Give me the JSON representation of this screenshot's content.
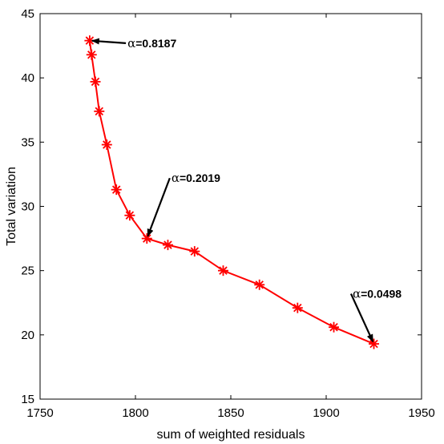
{
  "chart_data": {
    "type": "line",
    "title": "",
    "xlabel": "sum of weighted residuals",
    "ylabel": "Total variation",
    "xlim": [
      1750,
      1950
    ],
    "ylim": [
      15,
      45
    ],
    "xticks": [
      1750,
      1800,
      1850,
      1900,
      1950
    ],
    "yticks": [
      15,
      20,
      25,
      30,
      35,
      40,
      45
    ],
    "grid": false,
    "line_color": "#ff0000",
    "marker": "asterisk",
    "series": [
      {
        "x": [
          1776,
          1777,
          1779,
          1781,
          1785,
          1790,
          1797,
          1806,
          1817,
          1831,
          1846,
          1865,
          1885,
          1904,
          1925
        ],
        "y": [
          42.9,
          41.8,
          39.7,
          37.4,
          34.8,
          31.3,
          29.3,
          27.5,
          27.0,
          26.5,
          25.0,
          23.9,
          22.1,
          20.6,
          19.3
        ]
      }
    ],
    "annotations": [
      {
        "symbol": "α",
        "text": "=0.8187",
        "point": [
          1776,
          42.9
        ],
        "label_at": [
          1795,
          42.7
        ]
      },
      {
        "symbol": "α",
        "text": "=0.2019",
        "point": [
          1806,
          27.5
        ],
        "label_at": [
          1818,
          32.2
        ]
      },
      {
        "symbol": "α",
        "text": "=0.0498",
        "point": [
          1925,
          19.3
        ],
        "label_at": [
          1913,
          23.2
        ]
      }
    ]
  }
}
